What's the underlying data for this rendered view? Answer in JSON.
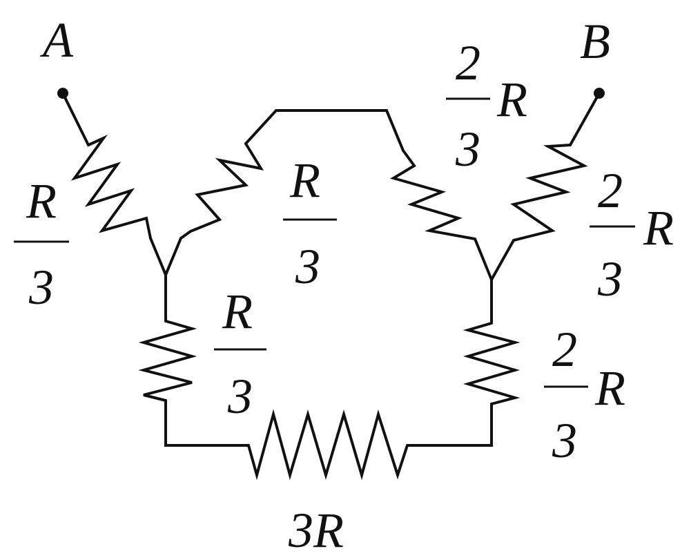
{
  "terminals": {
    "a": "A",
    "b": "B"
  },
  "resistors": {
    "left_outer": {
      "num": "R",
      "den": "3"
    },
    "left_inner": {
      "num": "R",
      "den": "3"
    },
    "left_down": {
      "num": "R",
      "den": "3"
    },
    "right_inner": {
      "coef_num": "2",
      "coef_den": "3",
      "symbol": "R"
    },
    "right_outer": {
      "coef_num": "2",
      "coef_den": "3",
      "symbol": "R"
    },
    "right_down": {
      "coef_num": "2",
      "coef_den": "3",
      "symbol": "R"
    },
    "bottom": {
      "label": "3R"
    }
  }
}
